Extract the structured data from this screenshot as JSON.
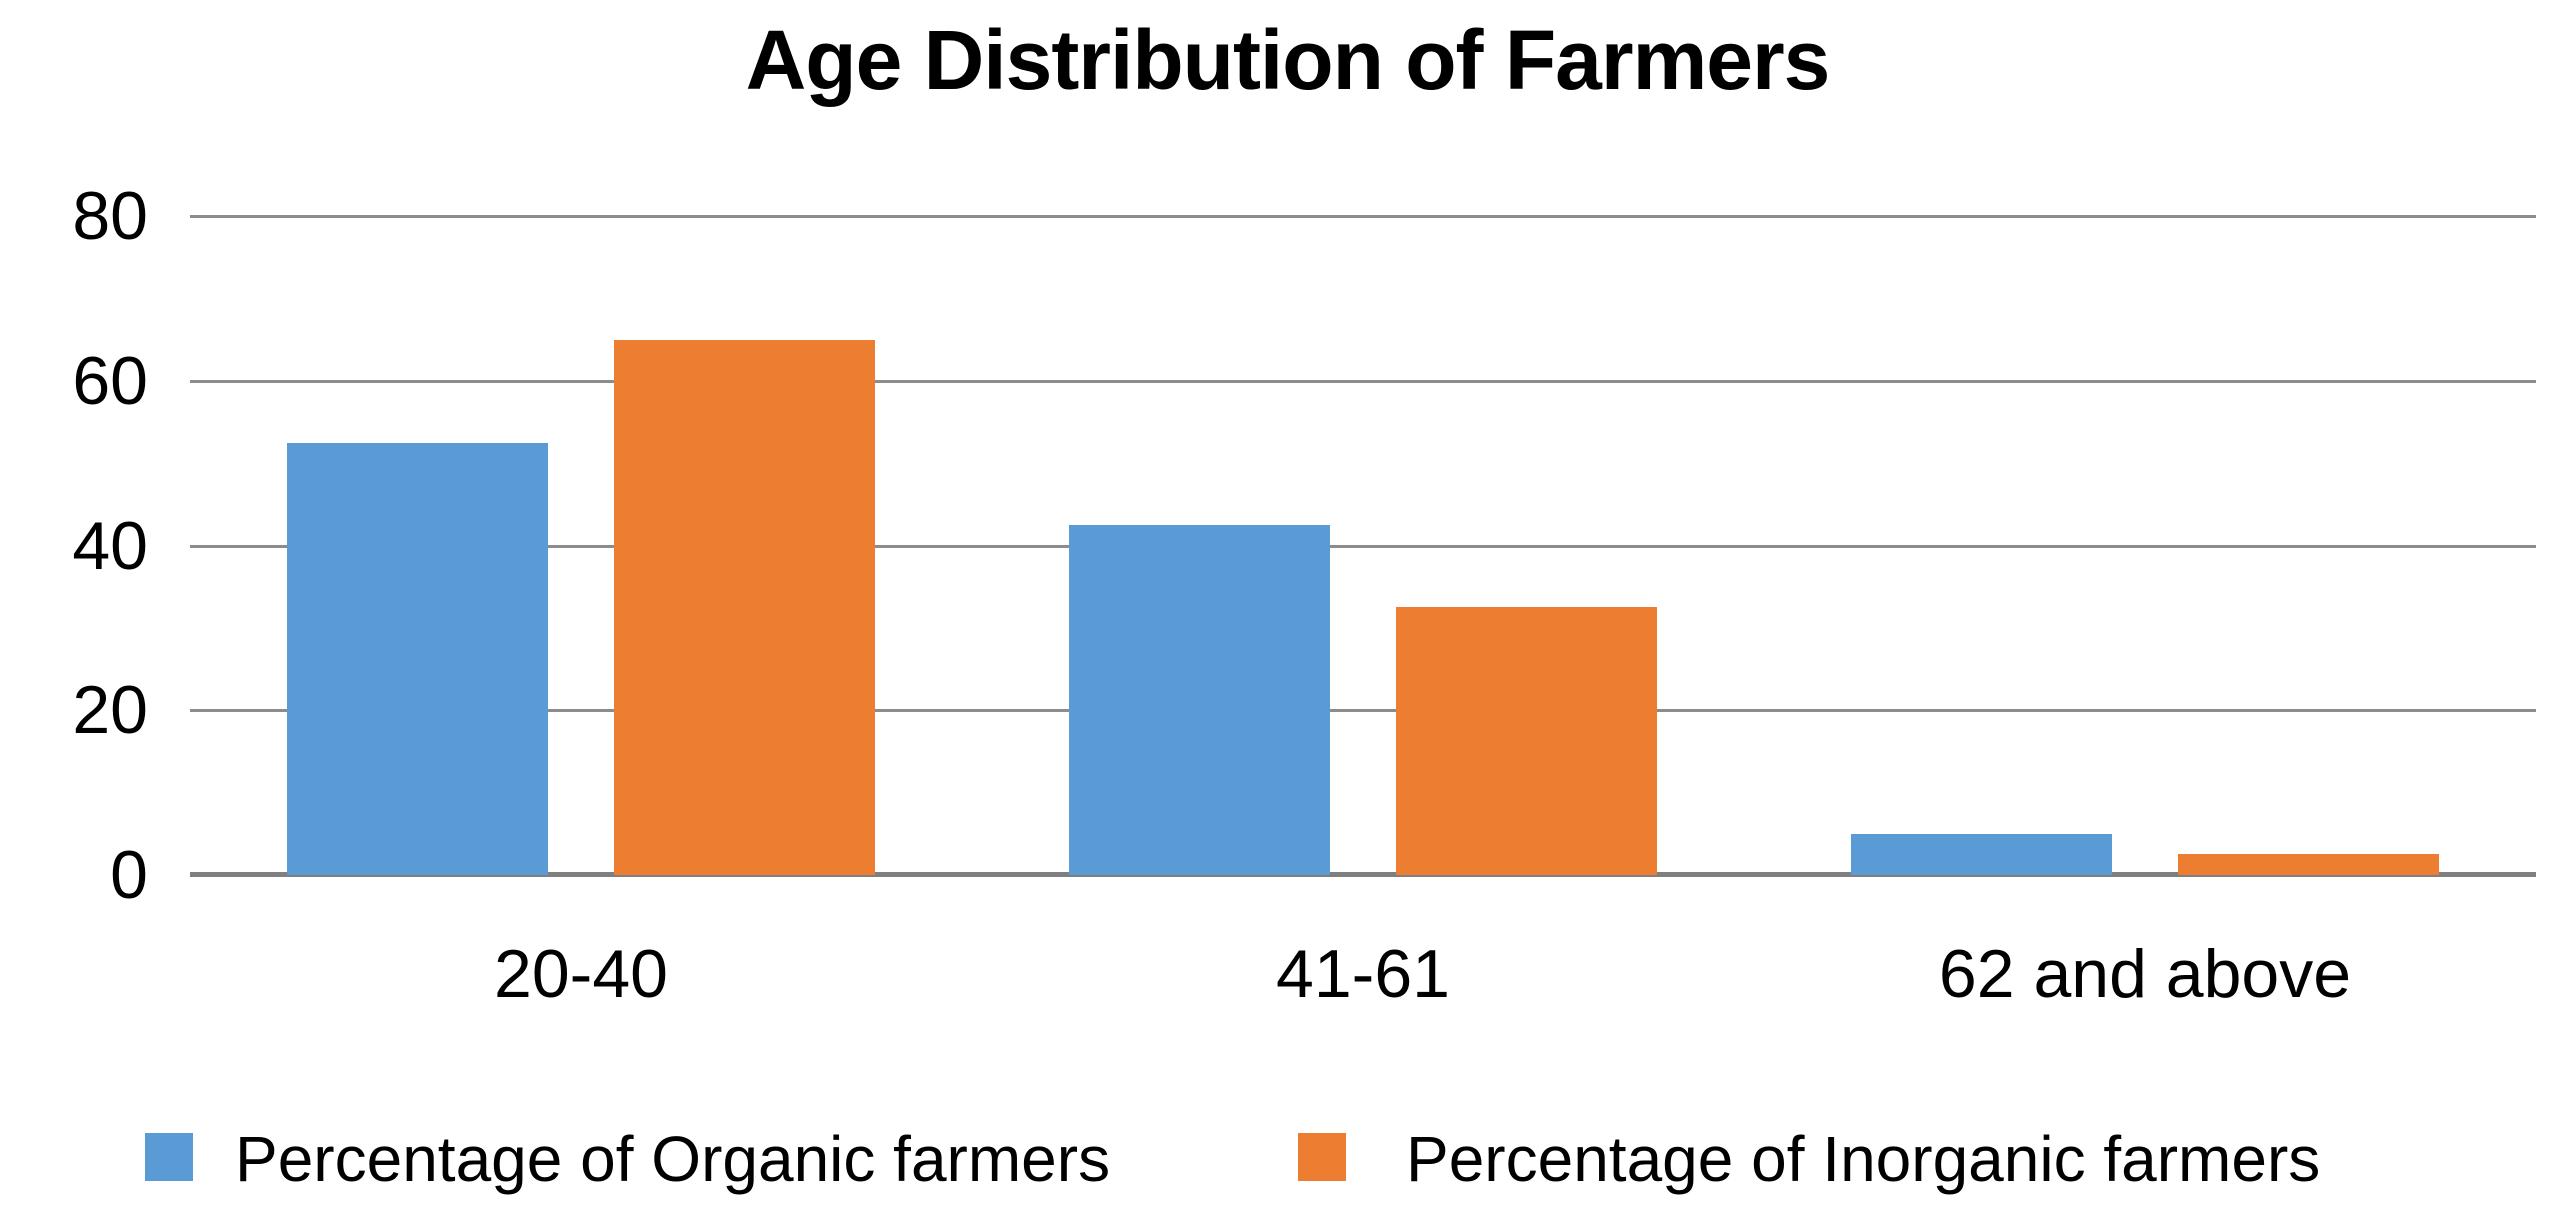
{
  "chart_data": {
    "type": "bar",
    "title": "Age Distribution of Farmers",
    "categories": [
      "20-40",
      "41-61",
      "62 and above"
    ],
    "series": [
      {
        "name": "Percentage of Organic farmers",
        "color": "#5B9BD5",
        "values": [
          52.5,
          42.5,
          5
        ]
      },
      {
        "name": "Percentage of Inorganic farmers",
        "color": "#ED7D31",
        "values": [
          65,
          32.5,
          2.5
        ]
      }
    ],
    "ylim": [
      0,
      80
    ],
    "yticks": [
      80,
      60,
      40,
      20,
      0
    ],
    "grid": "horizontal-major",
    "legend_position": "bottom",
    "xlabel": "",
    "ylabel": ""
  },
  "colors": {
    "background": "#FFFFFF",
    "gridline": "#8C8C8C",
    "axis": "#7F7F7F",
    "text": "#000000",
    "series_organic": "#5B9BD5",
    "series_inorganic": "#ED7D31"
  }
}
